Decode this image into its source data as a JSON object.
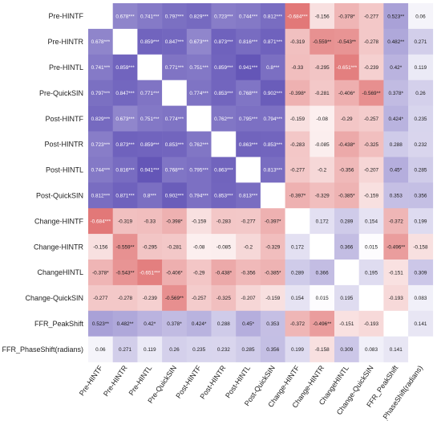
{
  "chart_data": {
    "type": "heatmap",
    "title": "",
    "xlabel": "",
    "ylabel": "",
    "labels": [
      "Pre-HINTF",
      "Pre-HINTR",
      "Pre-HINTL",
      "Pre-QuickSIN",
      "Post-HINTF",
      "Post-HINTR",
      "Post-HINTL",
      "Post-QuickSIN",
      "Change-HINTF",
      "Change-HINTR",
      "ChangeHINTL",
      "Change-QuickSIN",
      "FFR_PeakShift",
      "FFR_PhaseShift(radians)"
    ],
    "cells": [
      [
        "",
        "0.678***",
        "0.741***",
        "0.797***",
        "0.829***",
        "0.723***",
        "0.744***",
        "0.812***",
        "-0.684***",
        "-0.156",
        "-0.378*",
        "-0.277",
        "0.523**",
        "0.06"
      ],
      [
        "0.678***",
        "",
        "0.859***",
        "0.847***",
        "0.673***",
        "0.873***",
        "0.816***",
        "0.871***",
        "-0.319",
        "-0.559**",
        "-0.543**",
        "-0.278",
        "0.482**",
        "0.271"
      ],
      [
        "0.741***",
        "0.859***",
        "",
        "0.771***",
        "0.751***",
        "0.859***",
        "0.941***",
        "0.8***",
        "-0.33",
        "-0.295",
        "-0.651***",
        "-0.239",
        "0.42*",
        "0.119"
      ],
      [
        "0.797***",
        "0.847***",
        "0.771***",
        "",
        "0.774***",
        "0.853***",
        "0.768***",
        "0.902***",
        "-0.398*",
        "-0.281",
        "-0.406*",
        "-0.569**",
        "0.378*",
        "0.26"
      ],
      [
        "0.829***",
        "0.673***",
        "0.751***",
        "0.774***",
        "",
        "0.762***",
        "0.795***",
        "0.794***",
        "-0.159",
        "-0.08",
        "-0.29",
        "-0.257",
        "0.424*",
        "0.235"
      ],
      [
        "0.723***",
        "0.873***",
        "0.859***",
        "0.853***",
        "0.762***",
        "",
        "0.863***",
        "0.853***",
        "-0.283",
        "-0.085",
        "-0.438*",
        "-0.325",
        "0.288",
        "0.232"
      ],
      [
        "0.744***",
        "0.816***",
        "0.941***",
        "0.768***",
        "0.795***",
        "0.863***",
        "",
        "0.813***",
        "-0.277",
        "-0.2",
        "-0.356",
        "-0.207",
        "0.45*",
        "0.285"
      ],
      [
        "0.812***",
        "0.871***",
        "0.8***",
        "0.902***",
        "0.794***",
        "0.853***",
        "0.813***",
        "",
        "-0.397*",
        "-0.329",
        "-0.385*",
        "-0.159",
        "0.353",
        "0.356"
      ],
      [
        "-0.684***",
        "-0.319",
        "-0.33",
        "-0.398*",
        "-0.159",
        "-0.283",
        "-0.277",
        "-0.397*",
        "",
        "0.172",
        "0.289",
        "0.154",
        "-0.372",
        "0.199"
      ],
      [
        "-0.156",
        "-0.559**",
        "-0.295",
        "-0.281",
        "-0.08",
        "-0.085",
        "-0.2",
        "-0.329",
        "0.172",
        "",
        "0.366",
        "0.015",
        "-0.496**",
        "-0.158"
      ],
      [
        "-0.378*",
        "-0.543**",
        "-0.651***",
        "-0.406*",
        "-0.29",
        "-0.438*",
        "-0.356",
        "-0.385*",
        "0.289",
        "0.366",
        "",
        "0.195",
        "-0.151",
        "0.309"
      ],
      [
        "-0.277",
        "-0.278",
        "-0.239",
        "-0.569**",
        "-0.257",
        "-0.325",
        "-0.207",
        "-0.159",
        "0.154",
        "0.015",
        "0.195",
        "",
        "-0.193",
        "0.083"
      ],
      [
        "0.523**",
        "0.482**",
        "0.42*",
        "0.378*",
        "0.424*",
        "0.288",
        "0.45*",
        "0.353",
        "-0.372",
        "-0.496**",
        "-0.151",
        "-0.193",
        "",
        "0.141"
      ],
      [
        "0.06",
        "0.271",
        "0.119",
        "0.26",
        "0.235",
        "0.232",
        "0.285",
        "0.356",
        "0.199",
        "-0.158",
        "0.309",
        "0.083",
        "0.141",
        ""
      ]
    ],
    "colors": {
      "positive": "#5a4bb3",
      "negative": "#d43a3a",
      "neutral": "#ffffff",
      "diagonal": "#ffffff",
      "text_dark": "#1a1a1a",
      "text_light": "#ffffff"
    },
    "grid": true,
    "legend": "none"
  }
}
